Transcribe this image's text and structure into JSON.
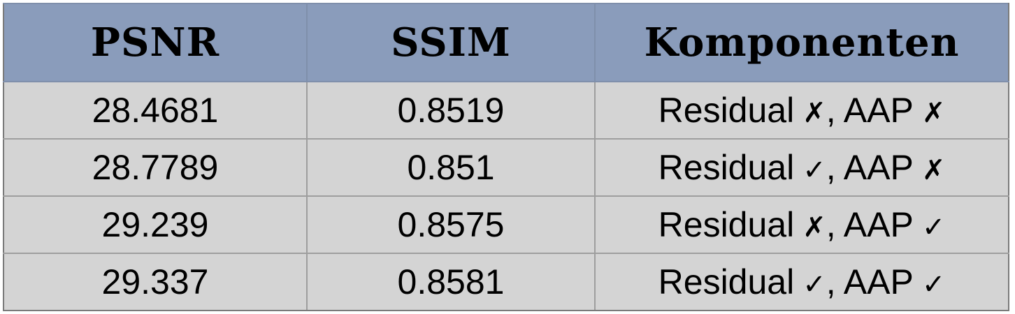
{
  "headers": [
    "PSNR",
    "SSIM",
    "Komponenten"
  ],
  "rows": [
    {
      "psnr": "28.4681",
      "ssim": "0.8519",
      "residual_label": "Residual",
      "residual_mark": "✗",
      "separator": ", ",
      "aap_label": "AAP",
      "aap_mark": "✗"
    },
    {
      "psnr": "28.7789",
      "ssim": "0.851",
      "residual_label": "Residual",
      "residual_mark": "✓",
      "separator": ", ",
      "aap_label": "AAP",
      "aap_mark": "✗"
    },
    {
      "psnr": "29.239",
      "ssim": "0.8575",
      "residual_label": "Residual",
      "residual_mark": "✗",
      "separator": ", ",
      "aap_label": "AAP",
      "aap_mark": "✓"
    },
    {
      "psnr": "29.337",
      "ssim": "0.8581",
      "residual_label": "Residual",
      "residual_mark": "✓",
      "separator": ", ",
      "aap_label": "AAP",
      "aap_mark": "✓"
    }
  ],
  "colors": {
    "header_bg": "#8a9cbb",
    "cell_bg": "#d4d4d4",
    "border": "#9e9e9e"
  }
}
